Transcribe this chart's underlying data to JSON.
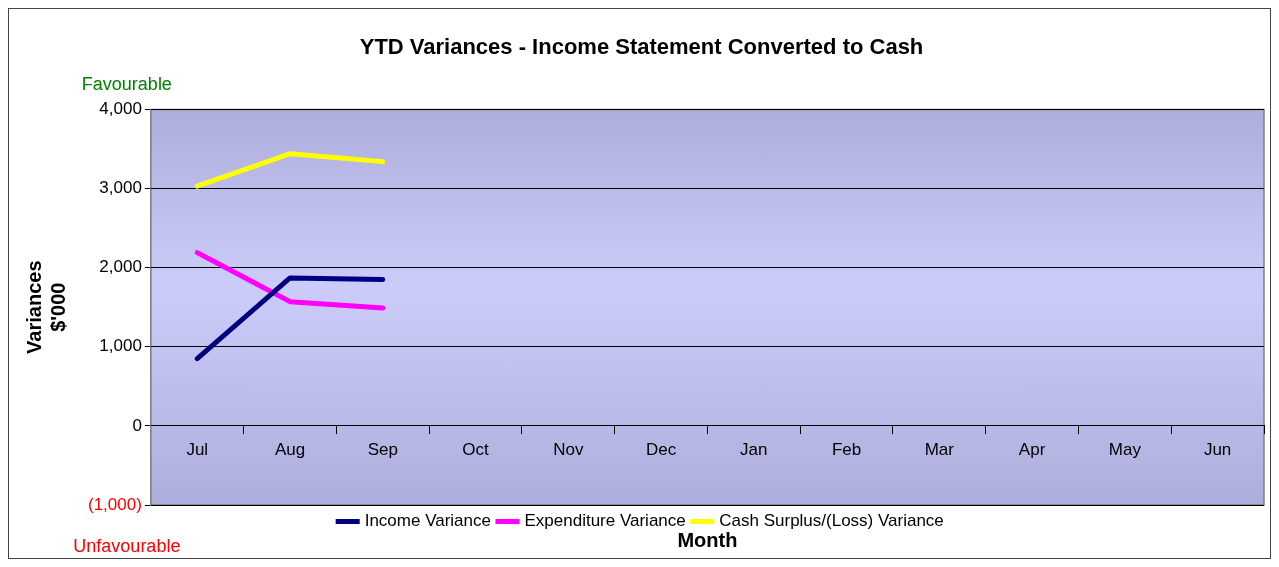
{
  "chart_data": {
    "type": "line",
    "title": "YTD Variances - Income Statement Converted to Cash",
    "xlabel": "Month",
    "ylabel": "Variances $'000",
    "categories": [
      "Jul",
      "Aug",
      "Sep",
      "Oct",
      "Nov",
      "Dec",
      "Jan",
      "Feb",
      "Mar",
      "Apr",
      "May",
      "Jun"
    ],
    "series": [
      {
        "name": "Income Variance",
        "color": "#000080",
        "values": [
          850,
          1870,
          1850,
          null,
          null,
          null,
          null,
          null,
          null,
          null,
          null,
          null
        ]
      },
      {
        "name": "Expenditure Variance",
        "color": "#ff00ff",
        "values": [
          2190,
          1570,
          1490,
          null,
          null,
          null,
          null,
          null,
          null,
          null,
          null,
          null
        ]
      },
      {
        "name": "Cash Surplus/(Loss) Variance",
        "color": "#ffff00",
        "values": [
          3030,
          3440,
          3340,
          null,
          null,
          null,
          null,
          null,
          null,
          null,
          null,
          null
        ]
      }
    ],
    "ylim": [
      -1000,
      4000
    ],
    "yticks": [
      {
        "value": -1000,
        "label": "(1,000)"
      },
      {
        "value": 0,
        "label": "0"
      },
      {
        "value": 1000,
        "label": "1,000"
      },
      {
        "value": 2000,
        "label": "2,000"
      },
      {
        "value": 3000,
        "label": "3,000"
      },
      {
        "value": 4000,
        "label": "4,000"
      }
    ],
    "grid": "y",
    "legend": "bottom",
    "marker": "none",
    "line_style": "solid",
    "annotations": [
      "Favourable",
      "Unfavourable"
    ]
  }
}
